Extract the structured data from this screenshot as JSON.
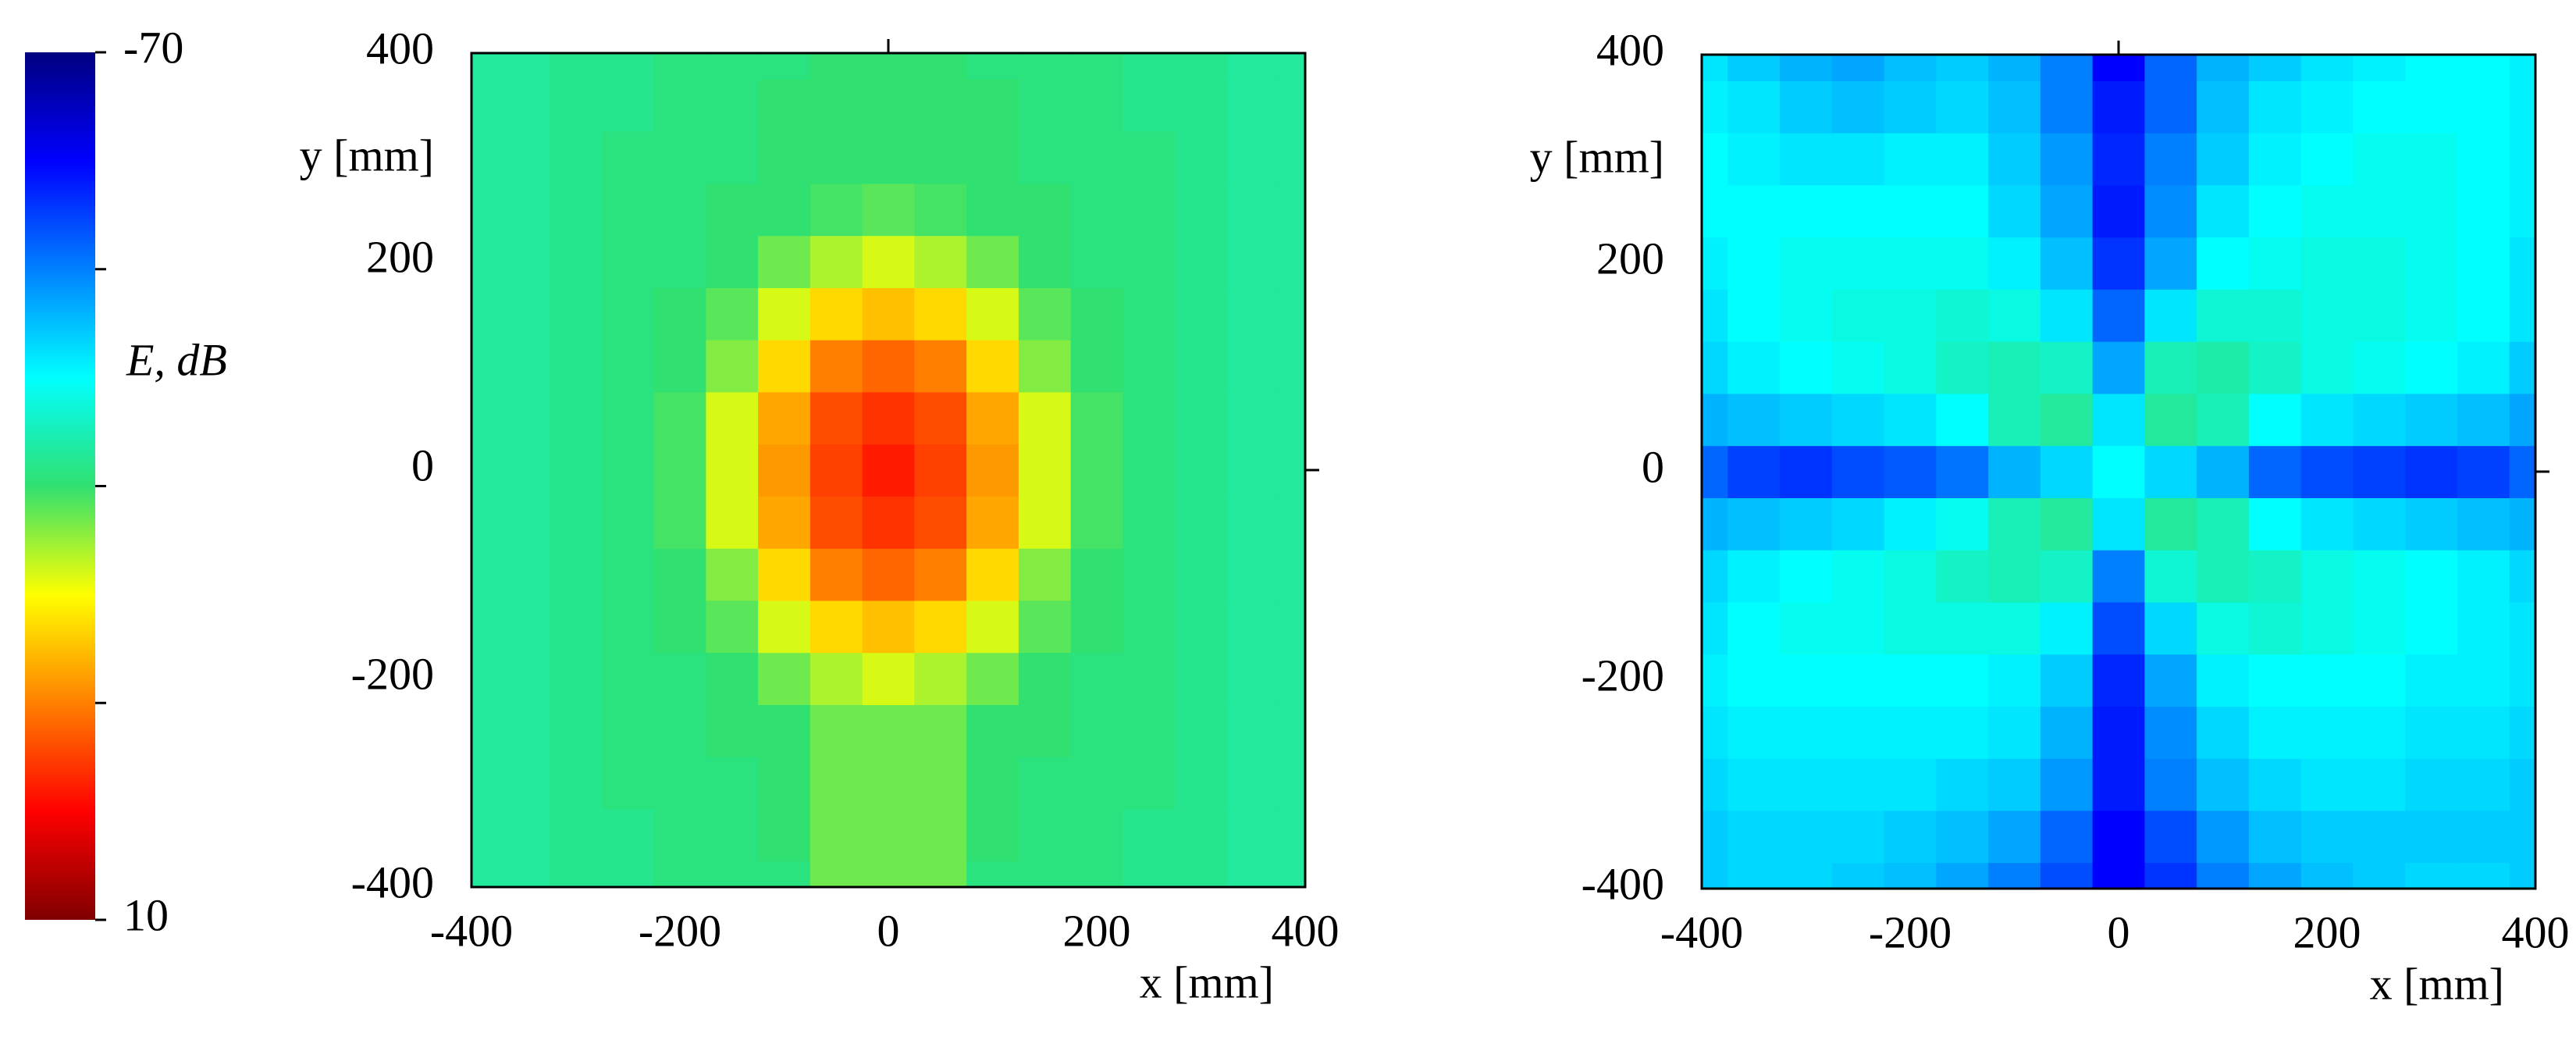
{
  "colorbar": {
    "label": "E, dB",
    "clim": [
      -70,
      10
    ],
    "ticks": [
      -70,
      {
        "value": -50,
        "label": null
      },
      {
        "value": -30,
        "label": null
      },
      {
        "value": -10,
        "label": null
      },
      10
    ],
    "colormap": [
      "#00007f",
      "#0000ff",
      "#0080ff",
      "#00ffff",
      "#30e070",
      "#ffff00",
      "#ff8000",
      "#ff0000",
      "#800000"
    ]
  },
  "chart_data": [
    {
      "type": "heatmap",
      "xlabel": "x [mm]",
      "ylabel": "y [mm]",
      "xlim": [
        -400,
        400
      ],
      "ylim": [
        -400,
        400
      ],
      "xticks": [
        -400,
        -200,
        0,
        200,
        400
      ],
      "yticks": [
        -400,
        -200,
        0,
        200,
        400
      ],
      "x": [
        -400,
        -350,
        -300,
        -250,
        -200,
        -150,
        -100,
        -50,
        0,
        50,
        100,
        150,
        200,
        250,
        300,
        350,
        400
      ],
      "y": [
        -400,
        -350,
        -300,
        -250,
        -200,
        -150,
        -100,
        -50,
        0,
        50,
        100,
        150,
        200,
        250,
        300,
        350,
        400
      ],
      "z": [
        [
          -33,
          -33,
          -32,
          -32,
          -31,
          -31,
          -31,
          -27,
          -27,
          -27,
          -31,
          -31,
          -31,
          -32,
          -32,
          -33,
          -33
        ],
        [
          -33,
          -33,
          -32,
          -32,
          -31,
          -31,
          -30,
          -27,
          -27,
          -27,
          -30,
          -31,
          -31,
          -32,
          -32,
          -33,
          -33
        ],
        [
          -33,
          -33,
          -32,
          -31,
          -31,
          -31,
          -30,
          -27,
          -27,
          -27,
          -30,
          -31,
          -31,
          -31,
          -32,
          -33,
          -33
        ],
        [
          -33,
          -33,
          -32,
          -31,
          -31,
          -30,
          -30,
          -27,
          -27,
          -27,
          -30,
          -30,
          -31,
          -31,
          -32,
          -33,
          -33
        ],
        [
          -33,
          -33,
          -32,
          -31,
          -31,
          -30,
          -27,
          -24,
          -22,
          -24,
          -27,
          -30,
          -31,
          -31,
          -32,
          -33,
          -33
        ],
        [
          -33,
          -33,
          -32,
          -31,
          -30,
          -28,
          -22,
          -17,
          -15,
          -17,
          -22,
          -28,
          -30,
          -31,
          -32,
          -33,
          -33
        ],
        [
          -33,
          -33,
          -32,
          -31,
          -30,
          -26,
          -17,
          -10,
          -8,
          -10,
          -17,
          -26,
          -30,
          -31,
          -32,
          -33,
          -33
        ],
        [
          -33,
          -33,
          -32,
          -31,
          -29,
          -22,
          -13,
          -6,
          -4,
          -6,
          -13,
          -22,
          -29,
          -31,
          -32,
          -33,
          -33
        ],
        [
          -33,
          -33,
          -32,
          -31,
          -29,
          -22,
          -12,
          -5,
          -2,
          -5,
          -12,
          -22,
          -29,
          -31,
          -32,
          -33,
          -33
        ],
        [
          -33,
          -33,
          -32,
          -31,
          -29,
          -22,
          -13,
          -6,
          -4,
          -6,
          -13,
          -22,
          -29,
          -31,
          -32,
          -33,
          -33
        ],
        [
          -33,
          -33,
          -32,
          -31,
          -30,
          -26,
          -17,
          -10,
          -8,
          -10,
          -17,
          -26,
          -30,
          -31,
          -32,
          -33,
          -33
        ],
        [
          -33,
          -33,
          -32,
          -31,
          -30,
          -28,
          -22,
          -17,
          -15,
          -17,
          -22,
          -28,
          -30,
          -31,
          -32,
          -33,
          -33
        ],
        [
          -33,
          -33,
          -32,
          -31,
          -31,
          -30,
          -27,
          -24,
          -22,
          -24,
          -27,
          -30,
          -31,
          -31,
          -32,
          -33,
          -33
        ],
        [
          -33,
          -33,
          -32,
          -31,
          -31,
          -30,
          -30,
          -29,
          -28,
          -29,
          -30,
          -30,
          -31,
          -31,
          -32,
          -33,
          -33
        ],
        [
          -33,
          -33,
          -32,
          -31,
          -31,
          -31,
          -30,
          -30,
          -30,
          -30,
          -30,
          -31,
          -31,
          -31,
          -32,
          -33,
          -33
        ],
        [
          -33,
          -33,
          -32,
          -32,
          -31,
          -31,
          -30,
          -30,
          -30,
          -30,
          -30,
          -31,
          -31,
          -32,
          -32,
          -33,
          -33
        ],
        [
          -33,
          -33,
          -32,
          -32,
          -31,
          -31,
          -31,
          -30,
          -30,
          -30,
          -31,
          -31,
          -31,
          -32,
          -32,
          -33,
          -33
        ]
      ]
    },
    {
      "type": "heatmap",
      "xlabel": "x [mm]",
      "ylabel": "y [mm]",
      "xlim": [
        -400,
        400
      ],
      "ylim": [
        -400,
        400
      ],
      "xticks": [
        -400,
        -200,
        0,
        200,
        400
      ],
      "yticks": [
        -400,
        -200,
        0,
        200,
        400
      ],
      "x": [
        -400,
        -350,
        -300,
        -250,
        -200,
        -150,
        -100,
        -50,
        0,
        50,
        100,
        150,
        200,
        250,
        300,
        350,
        400
      ],
      "y": [
        -400,
        -350,
        -300,
        -250,
        -200,
        -150,
        -100,
        -50,
        0,
        50,
        100,
        150,
        200,
        250,
        300,
        350,
        400
      ],
      "z": [
        [
          -44,
          -43,
          -43,
          -44,
          -45,
          -47,
          -50,
          -54,
          -60,
          -56,
          -50,
          -47,
          -45,
          -44,
          -43,
          -43,
          -44
        ],
        [
          -44,
          -43,
          -43,
          -43,
          -44,
          -45,
          -47,
          -52,
          -60,
          -54,
          -48,
          -45,
          -44,
          -44,
          -44,
          -44,
          -44
        ],
        [
          -43,
          -42,
          -42,
          -42,
          -42,
          -43,
          -44,
          -48,
          -58,
          -50,
          -45,
          -43,
          -42,
          -42,
          -43,
          -43,
          -44
        ],
        [
          -42,
          -41,
          -41,
          -41,
          -41,
          -41,
          -42,
          -46,
          -58,
          -49,
          -43,
          -41,
          -41,
          -41,
          -42,
          -42,
          -43
        ],
        [
          -41,
          -40,
          -40,
          -40,
          -40,
          -40,
          -41,
          -44,
          -57,
          -47,
          -41,
          -40,
          -40,
          -40,
          -41,
          -41,
          -42
        ],
        [
          -42,
          -40,
          -39,
          -39,
          -38,
          -38,
          -38,
          -41,
          -54,
          -43,
          -38,
          -37,
          -38,
          -39,
          -40,
          -41,
          -42
        ],
        [
          -43,
          -41,
          -40,
          -39,
          -38,
          -36,
          -35,
          -36,
          -50,
          -37,
          -35,
          -36,
          -38,
          -39,
          -40,
          -41,
          -43
        ],
        [
          -46,
          -45,
          -44,
          -43,
          -41,
          -39,
          -35,
          -33,
          -42,
          -33,
          -35,
          -40,
          -42,
          -43,
          -44,
          -45,
          -46
        ],
        [
          -52,
          -55,
          -56,
          -54,
          -53,
          -51,
          -46,
          -43,
          -40,
          -43,
          -46,
          -52,
          -54,
          -55,
          -56,
          -55,
          -52
        ],
        [
          -46,
          -45,
          -44,
          -43,
          -42,
          -40,
          -35,
          -33,
          -42,
          -33,
          -35,
          -40,
          -42,
          -43,
          -44,
          -45,
          -47
        ],
        [
          -43,
          -41,
          -40,
          -39,
          -38,
          -36,
          -35,
          -36,
          -47,
          -35,
          -34,
          -36,
          -38,
          -39,
          -40,
          -41,
          -44
        ],
        [
          -42,
          -40,
          -39,
          -38,
          -38,
          -37,
          -38,
          -42,
          -52,
          -42,
          -37,
          -37,
          -38,
          -38,
          -39,
          -40,
          -42
        ],
        [
          -41,
          -40,
          -39,
          -39,
          -39,
          -39,
          -41,
          -45,
          -56,
          -47,
          -40,
          -39,
          -38,
          -38,
          -39,
          -40,
          -42
        ],
        [
          -40,
          -40,
          -40,
          -40,
          -40,
          -40,
          -43,
          -47,
          -58,
          -49,
          -42,
          -40,
          -39,
          -39,
          -39,
          -40,
          -41
        ],
        [
          -40,
          -41,
          -42,
          -42,
          -41,
          -41,
          -44,
          -48,
          -57,
          -50,
          -44,
          -41,
          -40,
          -39,
          -39,
          -40,
          -41
        ],
        [
          -41,
          -42,
          -44,
          -45,
          -44,
          -43,
          -45,
          -50,
          -58,
          -52,
          -45,
          -42,
          -41,
          -40,
          -40,
          -40,
          -41
        ],
        [
          -42,
          -44,
          -46,
          -47,
          -45,
          -44,
          -46,
          -50,
          -60,
          -52,
          -46,
          -44,
          -42,
          -41,
          -40,
          -40,
          -41
        ]
      ]
    }
  ]
}
